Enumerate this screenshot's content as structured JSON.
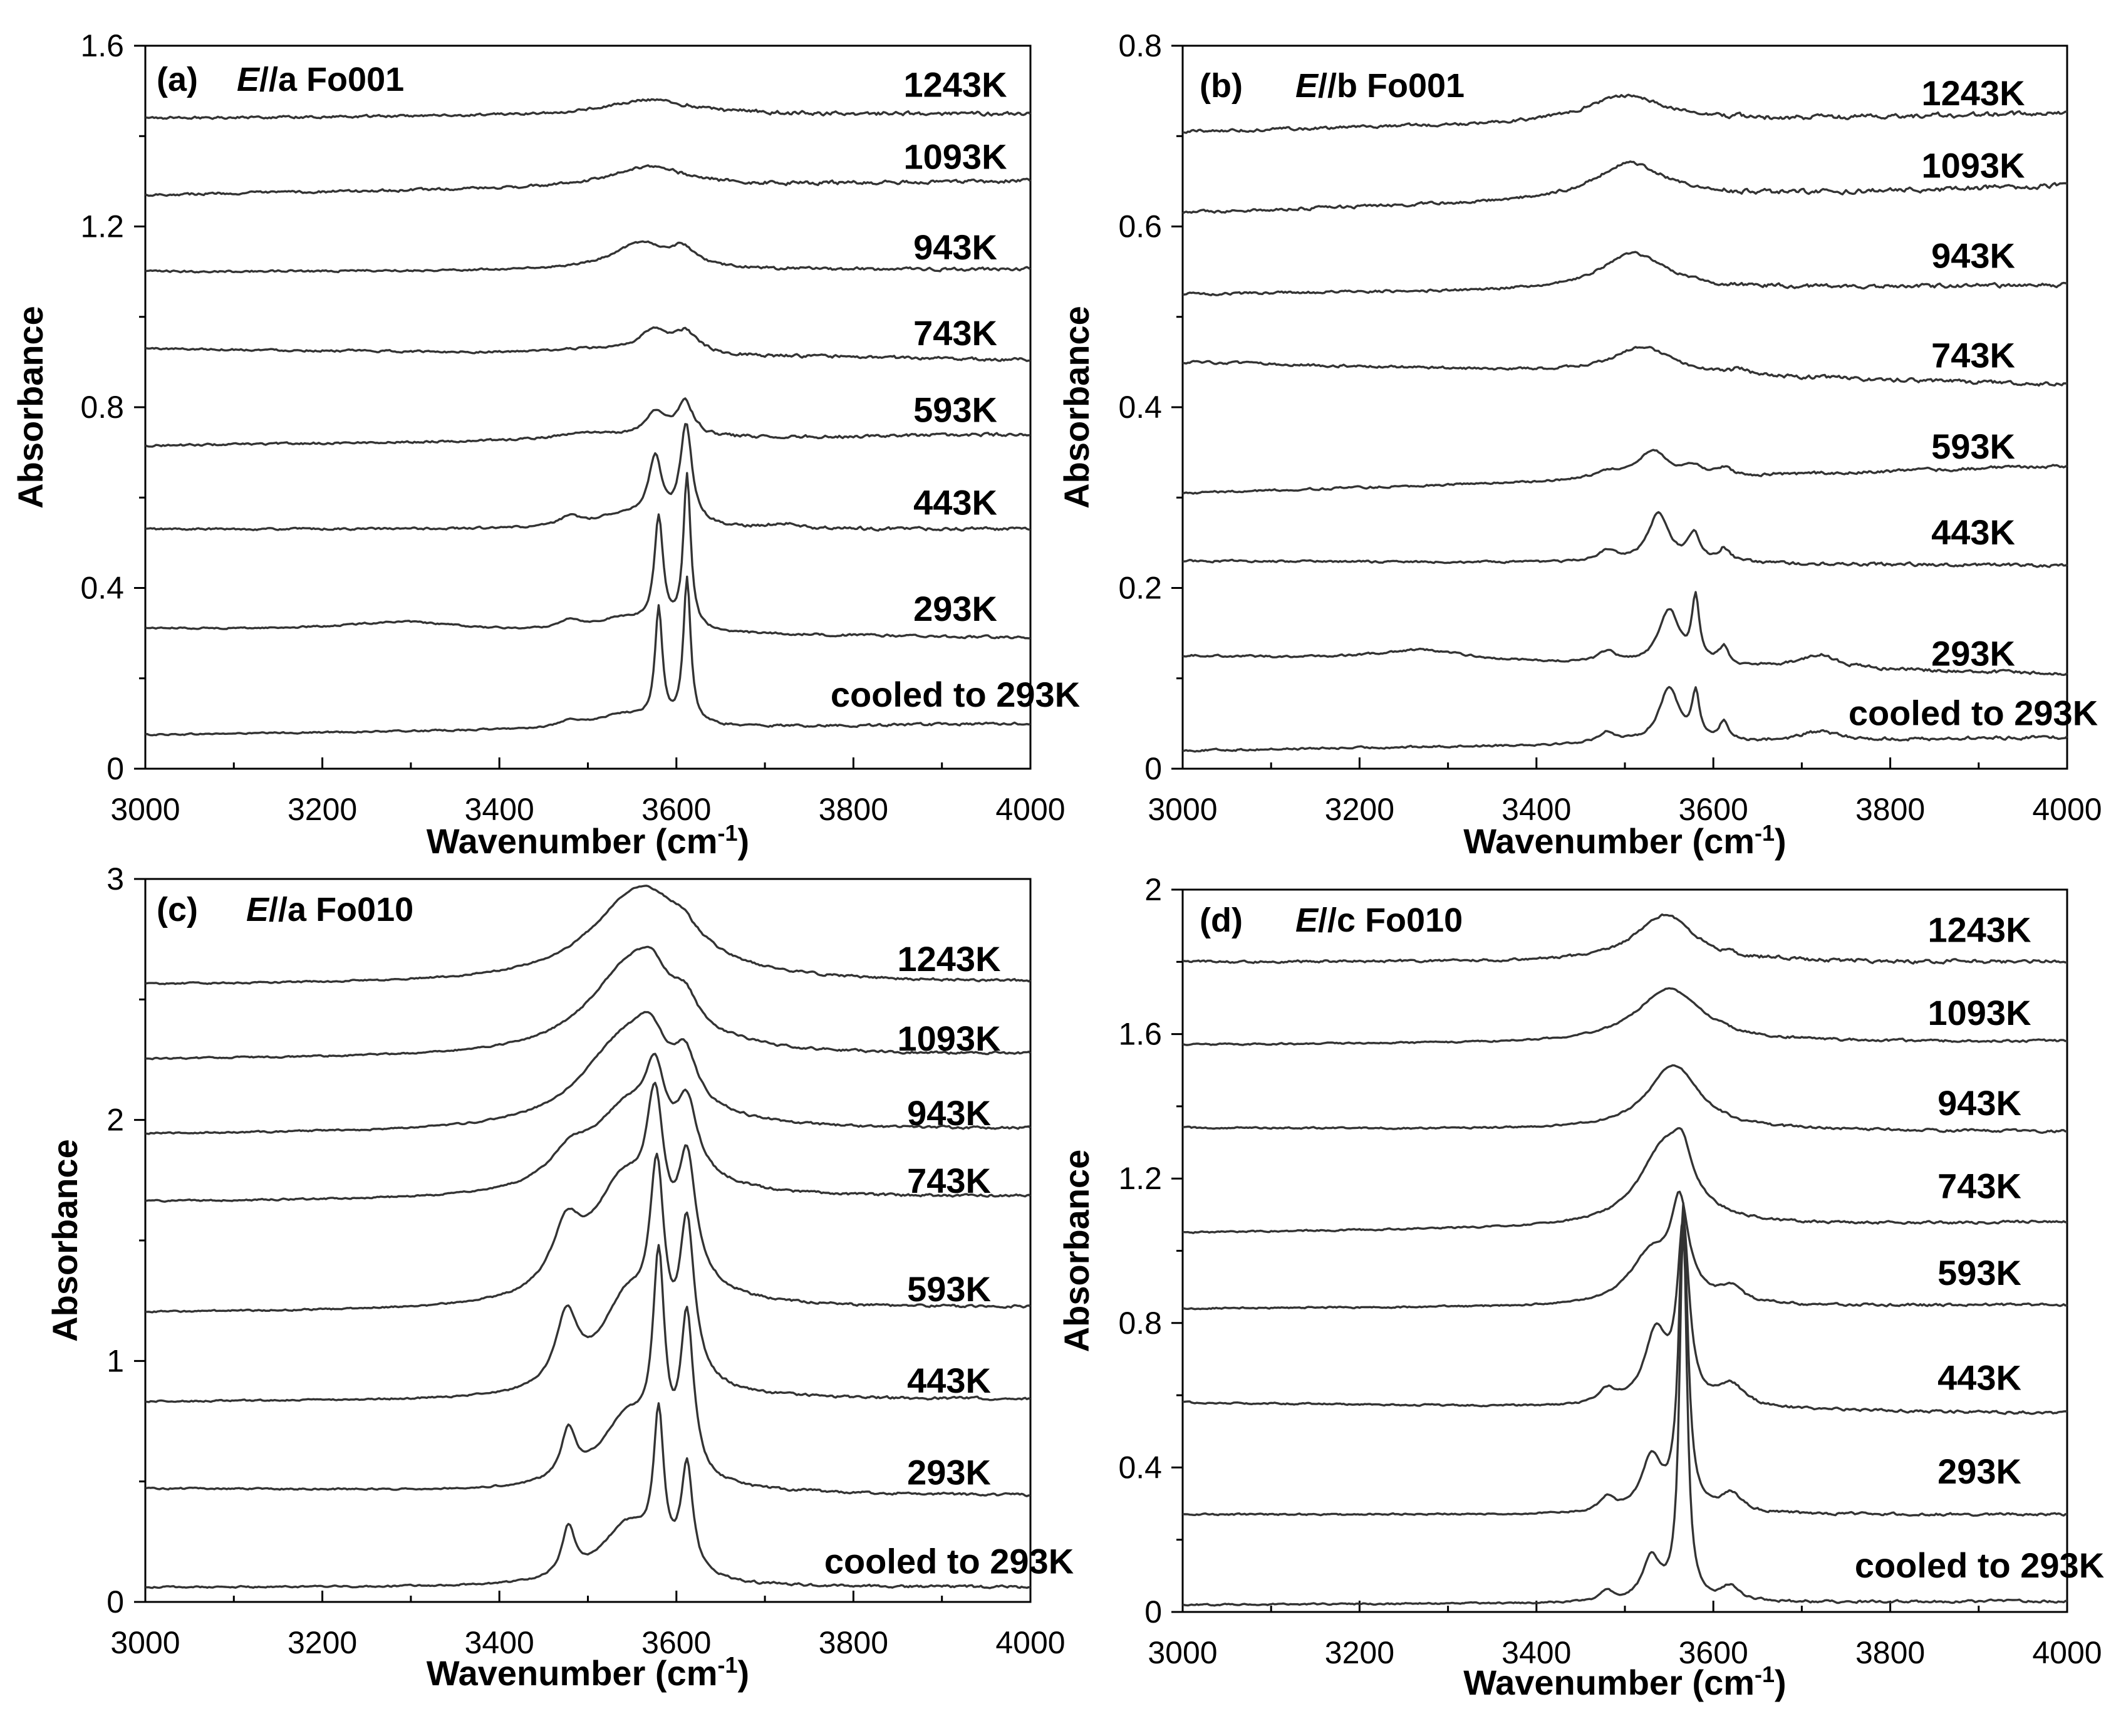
{
  "chart_data": [
    {
      "type": "line",
      "panel_label": "(a)",
      "title_italic": "E",
      "title_rest": "//a Fo001",
      "xlabel": "Wavenumber (cm",
      "xlabel_sup": "-1",
      "xlabel_close": ")",
      "ylabel": "Absorbance",
      "xlim": [
        3000,
        4000
      ],
      "ylim": [
        0,
        1.6
      ],
      "x_ticks": [
        3000,
        3200,
        3400,
        3600,
        3800,
        4000
      ],
      "y_ticks": [
        0,
        0.4,
        0.8,
        1.2,
        1.6
      ],
      "y_tick_labels": [
        "0",
        "0.4",
        "0.8",
        "1.2",
        "1.6"
      ],
      "series": [
        {
          "name": "cooled to 293K",
          "start": 0.075,
          "end": 0.1,
          "noise": 0.003,
          "label_y": 0.165,
          "peaks": [
            [
              3480,
              0.012,
              14
            ],
            [
              3540,
              0.03,
              40
            ],
            [
              3580,
              0.25,
              5
            ],
            [
              3612,
              0.32,
              5
            ]
          ]
        },
        {
          "name": "293K",
          "start": 0.31,
          "end": 0.29,
          "noise": 0.003,
          "label_y": 0.355,
          "peaks": [
            [
              3290,
              0.02,
              80
            ],
            [
              3480,
              0.02,
              14
            ],
            [
              3540,
              0.03,
              40
            ],
            [
              3580,
              0.24,
              6
            ],
            [
              3612,
              0.34,
              5
            ]
          ]
        },
        {
          "name": "443K",
          "start": 0.53,
          "end": 0.53,
          "noise": 0.004,
          "label_y": 0.59,
          "peaks": [
            [
              3480,
              0.02,
              14
            ],
            [
              3540,
              0.03,
              40
            ],
            [
              3576,
              0.14,
              9
            ],
            [
              3611,
              0.22,
              8
            ],
            [
              3720,
              0.01,
              20
            ]
          ]
        },
        {
          "name": "593K",
          "start": 0.715,
          "end": 0.74,
          "noise": 0.004,
          "label_y": 0.795,
          "peaks": [
            [
              3500,
              0.015,
              40
            ],
            [
              3576,
              0.055,
              14
            ],
            [
              3610,
              0.075,
              12
            ]
          ]
        },
        {
          "name": "743K",
          "start": 0.93,
          "end": 0.905,
          "noise": 0.004,
          "label_y": 0.965,
          "peaks": [
            [
              3500,
              0.01,
              50
            ],
            [
              3574,
              0.05,
              20
            ],
            [
              3610,
              0.045,
              16
            ]
          ]
        },
        {
          "name": "943K",
          "start": 1.1,
          "end": 1.105,
          "noise": 0.004,
          "label_y": 1.155,
          "peaks": [
            [
              3560,
              0.06,
              40
            ],
            [
              3608,
              0.035,
              15
            ]
          ]
        },
        {
          "name": "1093K",
          "start": 1.27,
          "end": 1.3,
          "noise": 0.005,
          "label_y": 1.355,
          "peaks": [
            [
              3570,
              0.045,
              55
            ]
          ]
        },
        {
          "name": "1243K",
          "start": 1.44,
          "end": 1.45,
          "noise": 0.005,
          "label_y": 1.515,
          "peaks": [
            [
              3570,
              0.035,
              60
            ]
          ]
        }
      ]
    },
    {
      "type": "line",
      "panel_label": "(b)",
      "title_italic": "E",
      "title_rest": "//b Fo001",
      "xlabel": "Wavenumber (cm",
      "xlabel_sup": "-1",
      "xlabel_close": ")",
      "ylabel": "Absorbance",
      "xlim": [
        3000,
        4000
      ],
      "ylim": [
        0,
        0.8
      ],
      "x_ticks": [
        3000,
        3200,
        3400,
        3600,
        3800,
        4000
      ],
      "y_ticks": [
        0,
        0.2,
        0.4,
        0.6,
        0.8
      ],
      "y_tick_labels": [
        "0",
        "0.2",
        "0.4",
        "0.6",
        "0.8"
      ],
      "series": [
        {
          "name": "cooled to 293K",
          "start": 0.02,
          "end": 0.035,
          "noise": 0.002,
          "label_y": 0.062,
          "peaks": [
            [
              3480,
              0.012,
              12
            ],
            [
              3550,
              0.06,
              14
            ],
            [
              3580,
              0.05,
              5
            ],
            [
              3612,
              0.02,
              6
            ],
            [
              3720,
              0.01,
              25
            ]
          ]
        },
        {
          "name": "293K",
          "start": 0.125,
          "end": 0.105,
          "noise": 0.002,
          "label_y": 0.128,
          "peaks": [
            [
              3270,
              0.012,
              60
            ],
            [
              3480,
              0.012,
              12
            ],
            [
              3550,
              0.06,
              14
            ],
            [
              3580,
              0.07,
              5
            ],
            [
              3612,
              0.02,
              6
            ],
            [
              3720,
              0.015,
              25
            ]
          ]
        },
        {
          "name": "443K",
          "start": 0.23,
          "end": 0.225,
          "noise": 0.002,
          "label_y": 0.262,
          "peaks": [
            [
              3480,
              0.012,
              14
            ],
            [
              3538,
              0.055,
              14
            ],
            [
              3578,
              0.03,
              8
            ],
            [
              3612,
              0.015,
              8
            ]
          ]
        },
        {
          "name": "593K",
          "start": 0.305,
          "end": 0.335,
          "noise": 0.002,
          "label_y": 0.357,
          "peaks": [
            [
              3480,
              0.008,
              20
            ],
            [
              3532,
              0.03,
              20
            ],
            [
              3578,
              0.01,
              12
            ],
            [
              3612,
              0.008,
              10
            ]
          ]
        },
        {
          "name": "743K",
          "start": 0.45,
          "end": 0.425,
          "noise": 0.0025,
          "label_y": 0.458,
          "peaks": [
            [
              3520,
              0.03,
              40
            ],
            [
              3630,
              0.006,
              10
            ]
          ]
        },
        {
          "name": "943K",
          "start": 0.525,
          "end": 0.535,
          "noise": 0.0025,
          "label_y": 0.568,
          "peaks": [
            [
              3510,
              0.04,
              45
            ]
          ]
        },
        {
          "name": "1093K",
          "start": 0.615,
          "end": 0.645,
          "noise": 0.003,
          "label_y": 0.668,
          "peaks": [
            [
              3505,
              0.04,
              50
            ]
          ]
        },
        {
          "name": "1243K",
          "start": 0.705,
          "end": 0.725,
          "noise": 0.003,
          "label_y": 0.748,
          "peaks": [
            [
              3500,
              0.03,
              55
            ]
          ]
        }
      ]
    },
    {
      "type": "line",
      "panel_label": "(c)",
      "title_italic": "E",
      "title_rest": "//a Fo010",
      "xlabel": "Wavenumber (cm",
      "xlabel_sup": "-1",
      "xlabel_close": ")",
      "ylabel": "Absorbance",
      "xlim": [
        3000,
        4000
      ],
      "ylim": [
        0,
        3
      ],
      "x_ticks": [
        3000,
        3200,
        3400,
        3600,
        3800,
        4000
      ],
      "y_ticks": [
        0,
        1,
        2,
        3
      ],
      "y_tick_labels": [
        "0",
        "1",
        "2",
        "3"
      ],
      "series": [
        {
          "name": "cooled to 293K",
          "start": 0.06,
          "end": 0.06,
          "noise": 0.006,
          "label_y": 0.17,
          "peaks": [
            [
              3478,
              0.2,
              9
            ],
            [
              3545,
              0.25,
              38
            ],
            [
              3580,
              0.6,
              7
            ],
            [
              3612,
              0.45,
              8
            ]
          ]
        },
        {
          "name": "293K",
          "start": 0.47,
          "end": 0.44,
          "noise": 0.006,
          "label_y": 0.54,
          "peaks": [
            [
              3478,
              0.2,
              10
            ],
            [
              3545,
              0.3,
              38
            ],
            [
              3580,
              0.82,
              8
            ],
            [
              3612,
              0.65,
              9
            ]
          ]
        },
        {
          "name": "443K",
          "start": 0.83,
          "end": 0.84,
          "noise": 0.006,
          "label_y": 0.92,
          "peaks": [
            [
              3476,
              0.29,
              15
            ],
            [
              3545,
              0.4,
              38
            ],
            [
              3578,
              0.74,
              10
            ],
            [
              3612,
              0.62,
              10
            ]
          ]
        },
        {
          "name": "593K",
          "start": 1.2,
          "end": 1.22,
          "noise": 0.006,
          "label_y": 1.3,
          "peaks": [
            [
              3476,
              0.24,
              20
            ],
            [
              3540,
              0.5,
              45
            ],
            [
              3576,
              0.58,
              12
            ],
            [
              3612,
              0.48,
              12
            ]
          ]
        },
        {
          "name": "743K",
          "start": 1.66,
          "end": 1.68,
          "noise": 0.006,
          "label_y": 1.75,
          "peaks": [
            [
              3480,
              0.12,
              30
            ],
            [
              3545,
              0.35,
              50
            ],
            [
              3576,
              0.3,
              14
            ],
            [
              3612,
              0.28,
              14
            ]
          ]
        },
        {
          "name": "943K",
          "start": 1.94,
          "end": 1.96,
          "noise": 0.006,
          "label_y": 2.03,
          "peaks": [
            [
              3540,
              0.36,
              60
            ],
            [
              3570,
              0.18,
              22
            ],
            [
              3610,
              0.18,
              15
            ]
          ]
        },
        {
          "name": "1093K",
          "start": 2.25,
          "end": 2.27,
          "noise": 0.006,
          "label_y": 2.34,
          "peaks": [
            [
              3550,
              0.38,
              60
            ],
            [
              3572,
              0.1,
              20
            ],
            [
              3610,
              0.1,
              15
            ]
          ]
        },
        {
          "name": "1243K",
          "start": 2.56,
          "end": 2.57,
          "noise": 0.006,
          "label_y": 2.67,
          "peaks": [
            [
              3560,
              0.4,
              65
            ],
            [
              3608,
              0.05,
              18
            ]
          ]
        }
      ]
    },
    {
      "type": "line",
      "panel_label": "(d)",
      "title_italic": "E",
      "title_rest": "//c Fo010",
      "xlabel": "Wavenumber (cm",
      "xlabel_sup": "-1",
      "xlabel_close": ")",
      "ylabel": "Absorbance",
      "xlim": [
        3000,
        4000
      ],
      "ylim": [
        0,
        2
      ],
      "x_ticks": [
        3000,
        3200,
        3400,
        3600,
        3800,
        4000
      ],
      "y_ticks": [
        0,
        0.4,
        0.8,
        1.2,
        1.6,
        2
      ],
      "y_tick_labels": [
        "0",
        "0.4",
        "0.8",
        "1.2",
        "1.6",
        "2"
      ],
      "series": [
        {
          "name": "cooled to 293K",
          "start": 0.02,
          "end": 0.03,
          "noise": 0.004,
          "label_y": 0.13,
          "peaks": [
            [
              3480,
              0.03,
              8
            ],
            [
              3530,
              0.12,
              12
            ],
            [
              3566,
              1.05,
              5
            ],
            [
              3620,
              0.04,
              12
            ]
          ]
        },
        {
          "name": "293K",
          "start": 0.27,
          "end": 0.27,
          "noise": 0.004,
          "label_y": 0.39,
          "peaks": [
            [
              3480,
              0.04,
              10
            ],
            [
              3530,
              0.15,
              14
            ],
            [
              3566,
              0.84,
              6
            ],
            [
              3620,
              0.05,
              15
            ]
          ]
        },
        {
          "name": "443K",
          "start": 0.58,
          "end": 0.55,
          "noise": 0.004,
          "label_y": 0.65,
          "peaks": [
            [
              3480,
              0.04,
              12
            ],
            [
              3535,
              0.2,
              16
            ],
            [
              3566,
              0.48,
              8
            ],
            [
              3620,
              0.06,
              18
            ]
          ]
        },
        {
          "name": "593K",
          "start": 0.84,
          "end": 0.85,
          "noise": 0.004,
          "label_y": 0.94,
          "peaks": [
            [
              3530,
              0.14,
              30
            ],
            [
              3562,
              0.25,
              12
            ],
            [
              3620,
              0.04,
              15
            ]
          ]
        },
        {
          "name": "743K",
          "start": 1.05,
          "end": 1.08,
          "noise": 0.004,
          "label_y": 1.18,
          "peaks": [
            [
              3545,
              0.22,
              35
            ],
            [
              3565,
              0.1,
              12
            ]
          ]
        },
        {
          "name": "943K",
          "start": 1.34,
          "end": 1.33,
          "noise": 0.004,
          "label_y": 1.41,
          "peaks": [
            [
              3555,
              0.18,
              35
            ]
          ]
        },
        {
          "name": "1093K",
          "start": 1.57,
          "end": 1.58,
          "noise": 0.004,
          "label_y": 1.66,
          "peaks": [
            [
              3550,
              0.15,
              45
            ]
          ]
        },
        {
          "name": "1243K",
          "start": 1.8,
          "end": 1.8,
          "noise": 0.006,
          "label_y": 1.89,
          "peaks": [
            [
              3545,
              0.13,
              40
            ]
          ]
        }
      ]
    }
  ]
}
